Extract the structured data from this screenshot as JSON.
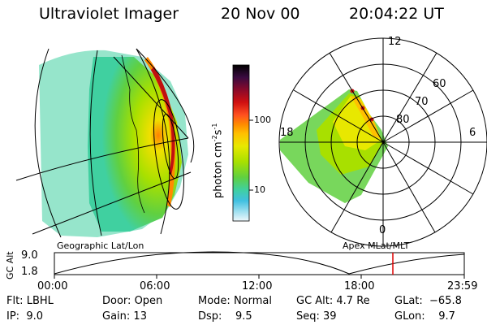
{
  "header": {
    "instrument": "Ultraviolet Imager",
    "date": "20 Nov 00",
    "time": "20:04:22 UT"
  },
  "views": {
    "left_label": "Geographic Lat/Lon",
    "right_label": "Apex MLat/MLT"
  },
  "colorbar": {
    "unit_label": "photon cm",
    "unit_sup1": "-2",
    "unit_mid": "s",
    "unit_sup2": "-1",
    "tick_labels": [
      "100",
      "10"
    ],
    "colors": [
      "#000000",
      "#3a0a40",
      "#8a0a2a",
      "#d01010",
      "#ff4020",
      "#ff8000",
      "#ffc000",
      "#e0e000",
      "#a8e000",
      "#60d040",
      "#40d0a0",
      "#40c0e0",
      "#a0e0f0",
      "#e8f6fb"
    ]
  },
  "polar": {
    "mlt_labels": {
      "top": "12",
      "left": "18",
      "right": "6",
      "bottom": "0"
    },
    "mlat_labels": [
      "60",
      "70",
      "80"
    ]
  },
  "altitude_plot": {
    "ylabel": "GC Alt",
    "y_ticks": [
      "9.0",
      "1.8"
    ],
    "x_ticks": [
      "00:00",
      "06:00",
      "12:00",
      "18:00",
      "23:59"
    ],
    "current_marker_color": "#dd0000"
  },
  "info": {
    "col1": {
      "flt_label": "Flt:",
      "flt": "LBHL",
      "ip_label": "IP:",
      "ip": "9.0"
    },
    "col2": {
      "door_label": "Door:",
      "door": "Open",
      "gain_label": "Gain:",
      "gain": "13"
    },
    "col3": {
      "mode_label": "Mode:",
      "mode": "Normal",
      "dsp_label": "Dsp:",
      "dsp": "9.5"
    },
    "col4": {
      "gcalt_label": "GC Alt:",
      "gcalt": "4.7 Re",
      "seq_label": "Seq:",
      "seq": "39"
    },
    "col5": {
      "glat_label": "GLat:",
      "glat": "−65.8",
      "glon_label": "GLon:",
      "glon": "9.7"
    }
  }
}
